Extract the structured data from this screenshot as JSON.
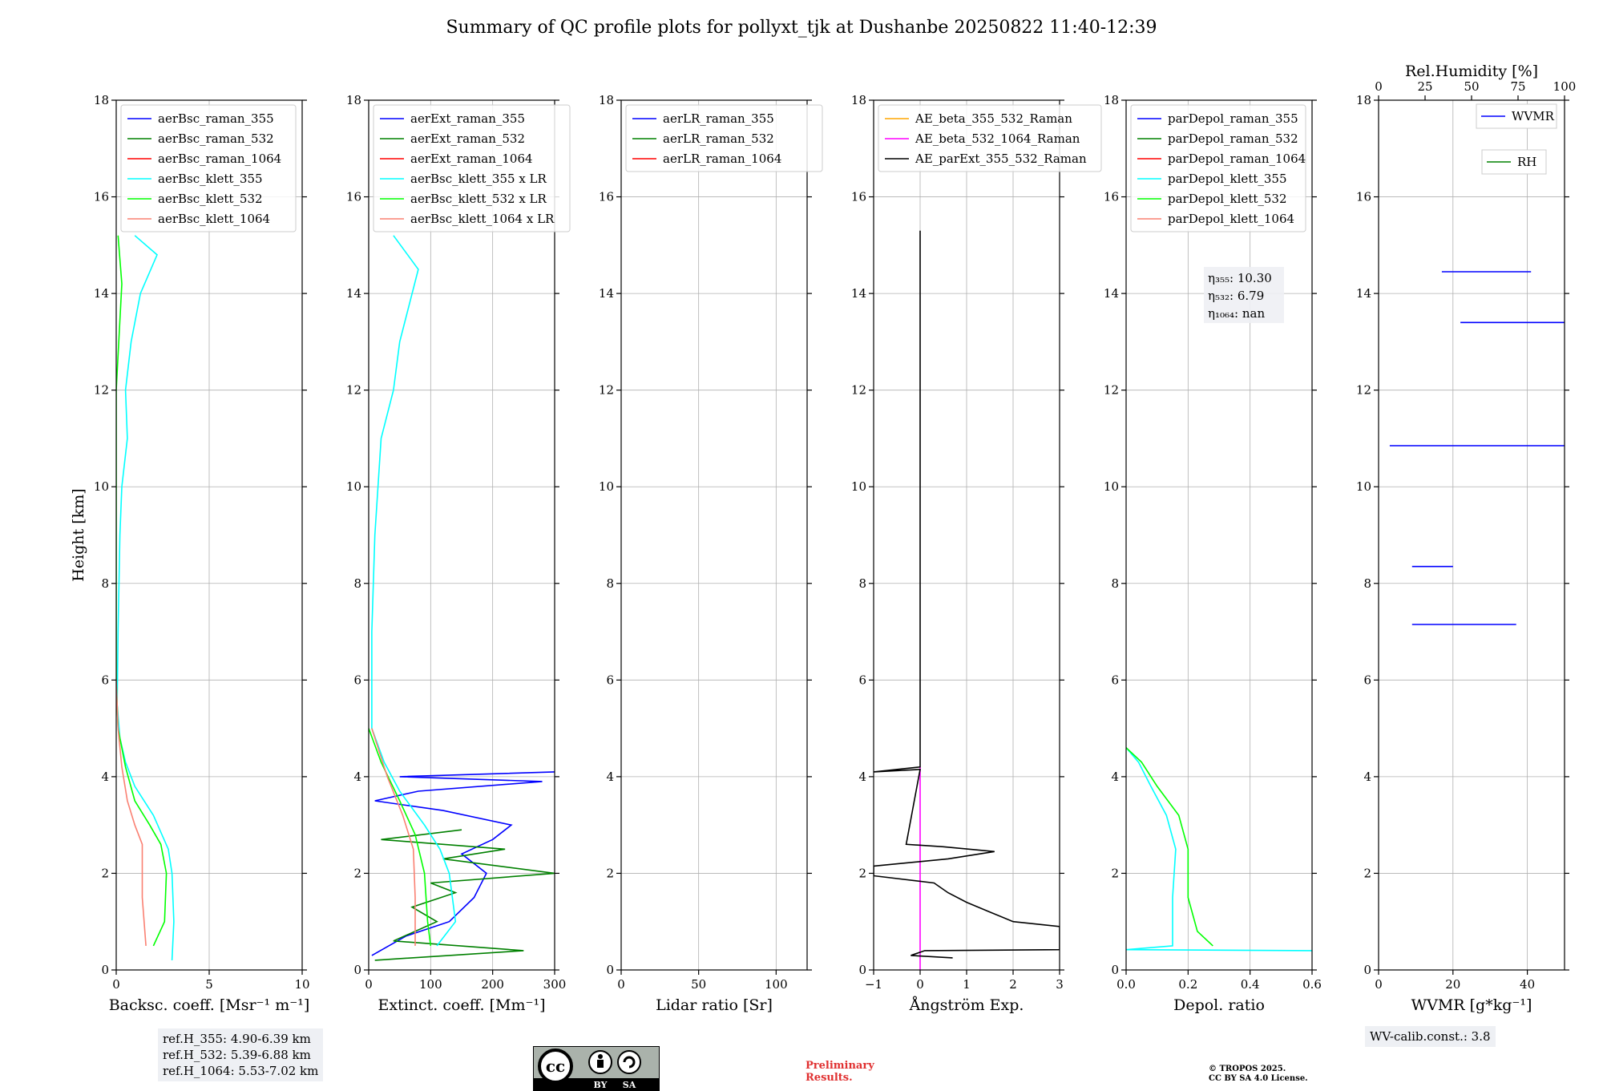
{
  "figure": {
    "title": "Summary of QC profile plots for pollyxt_tjk at Dushanbe 20250822 11:40-12:39",
    "ylabel": "Height [km]",
    "ref_heights": [
      "ref.H_355: 4.90-6.39 km",
      "ref.H_532: 5.39-6.88 km",
      "ref.H_1064: 5.53-7.02 km"
    ],
    "wv_calib": "WV-calib.const.: 3.8",
    "preliminary": [
      "Preliminary",
      "Results."
    ],
    "copyright": [
      "© TROPOS 2025.",
      "CC BY SA 4.0 License."
    ],
    "license_badge": [
      "BY",
      "SA"
    ],
    "colors": {
      "blue": "#0000ff",
      "green": "#008000",
      "red": "#ff0000",
      "cyan": "#00ffff",
      "lime": "#00ff00",
      "salmon": "#fa8072",
      "orange": "#ffa500",
      "magenta": "#ff00ff",
      "black": "#000000"
    }
  },
  "chart_data": [
    {
      "type": "line",
      "xlabel": "Backsc. coeff. [Msr⁻¹ m⁻¹]",
      "xlim": [
        0,
        10
      ],
      "ylim": [
        0,
        18
      ],
      "xticks": [
        "0",
        "5",
        "10"
      ],
      "yticks": [
        "0",
        "2",
        "4",
        "6",
        "8",
        "10",
        "12",
        "14",
        "16",
        "18"
      ],
      "legend": [
        "aerBsc_raman_355",
        "aerBsc_raman_532",
        "aerBsc_raman_1064",
        "aerBsc_klett_355",
        "aerBsc_klett_532",
        "aerBsc_klett_1064"
      ],
      "legend_colors": [
        "#0000ff",
        "#008000",
        "#ff0000",
        "#00ffff",
        "#00ff00",
        "#fa8072"
      ],
      "series": [
        {
          "name": "aerBsc_klett_355",
          "color": "#00ffff",
          "points": [
            [
              3.0,
              0.2
            ],
            [
              3.1,
              1.0
            ],
            [
              3.0,
              2.0
            ],
            [
              2.8,
              2.5
            ],
            [
              2.0,
              3.2
            ],
            [
              1.0,
              3.8
            ],
            [
              0.5,
              4.3
            ],
            [
              0.2,
              4.8
            ],
            [
              0.05,
              5.5
            ],
            [
              0.1,
              7.0
            ],
            [
              0.2,
              9.0
            ],
            [
              0.3,
              10.0
            ],
            [
              0.6,
              11.0
            ],
            [
              0.5,
              12.0
            ],
            [
              0.8,
              13.0
            ],
            [
              1.3,
              14.0
            ],
            [
              2.2,
              14.8
            ],
            [
              1.0,
              15.2
            ]
          ]
        },
        {
          "name": "aerBsc_klett_532",
          "color": "#00ff00",
          "points": [
            [
              2.0,
              0.5
            ],
            [
              2.6,
              1.0
            ],
            [
              2.7,
              2.0
            ],
            [
              2.4,
              2.6
            ],
            [
              1.8,
              3.0
            ],
            [
              1.0,
              3.5
            ],
            [
              0.5,
              4.2
            ],
            [
              0.1,
              5.0
            ],
            [
              0.0,
              6.0
            ],
            [
              0.0,
              12.0
            ],
            [
              0.3,
              14.2
            ],
            [
              0.1,
              15.2
            ]
          ]
        },
        {
          "name": "aerBsc_klett_1064",
          "color": "#fa8072",
          "points": [
            [
              1.6,
              0.5
            ],
            [
              1.4,
              1.5
            ],
            [
              1.4,
              2.6
            ],
            [
              1.0,
              3.0
            ],
            [
              0.6,
              3.5
            ],
            [
              0.3,
              4.2
            ],
            [
              0.1,
              5.0
            ],
            [
              0.0,
              6.0
            ]
          ]
        }
      ]
    },
    {
      "type": "line",
      "xlabel": "Extinct. coeff. [Mm⁻¹]",
      "xlim": [
        0,
        300
      ],
      "ylim": [
        0,
        18
      ],
      "xticks": [
        "0",
        "100",
        "200",
        "300"
      ],
      "yticks": [
        "0",
        "2",
        "4",
        "6",
        "8",
        "10",
        "12",
        "14",
        "16",
        "18"
      ],
      "legend": [
        "aerExt_raman_355",
        "aerExt_raman_532",
        "aerExt_raman_1064",
        "aerBsc_klett_355 x LR",
        "aerBsc_klett_532 x LR",
        "aerBsc_klett_1064 x LR"
      ],
      "legend_colors": [
        "#0000ff",
        "#008000",
        "#ff0000",
        "#00ffff",
        "#00ff00",
        "#fa8072"
      ],
      "series": [
        {
          "name": "aerExt_raman_355",
          "color": "#0000ff",
          "points": [
            [
              5,
              0.3
            ],
            [
              60,
              0.7
            ],
            [
              130,
              1.0
            ],
            [
              170,
              1.5
            ],
            [
              190,
              2.0
            ],
            [
              150,
              2.4
            ],
            [
              200,
              2.7
            ],
            [
              230,
              3.0
            ],
            [
              120,
              3.3
            ],
            [
              10,
              3.5
            ],
            [
              80,
              3.7
            ],
            [
              280,
              3.9
            ],
            [
              50,
              4.0
            ],
            [
              300,
              4.1
            ]
          ]
        },
        {
          "name": "aerExt_raman_532",
          "color": "#008000",
          "points": [
            [
              10,
              0.2
            ],
            [
              250,
              0.4
            ],
            [
              40,
              0.6
            ],
            [
              110,
              1.0
            ],
            [
              70,
              1.3
            ],
            [
              140,
              1.6
            ],
            [
              100,
              1.8
            ],
            [
              300,
              2.0
            ],
            [
              120,
              2.3
            ],
            [
              220,
              2.5
            ],
            [
              20,
              2.7
            ],
            [
              150,
              2.9
            ]
          ]
        },
        {
          "name": "aerBsc_klett_355 x LR",
          "color": "#00ffff",
          "points": [
            [
              110,
              0.5
            ],
            [
              140,
              1.0
            ],
            [
              130,
              2.0
            ],
            [
              115,
              2.5
            ],
            [
              90,
              3.0
            ],
            [
              50,
              3.7
            ],
            [
              25,
              4.3
            ],
            [
              5,
              5.0
            ],
            [
              5,
              7.0
            ],
            [
              10,
              9.0
            ],
            [
              20,
              11.0
            ],
            [
              40,
              12.0
            ],
            [
              50,
              13.0
            ],
            [
              80,
              14.5
            ],
            [
              40,
              15.2
            ]
          ]
        },
        {
          "name": "aerBsc_klett_532 x LR",
          "color": "#00ff00",
          "points": [
            [
              100,
              0.5
            ],
            [
              95,
              1.0
            ],
            [
              90,
              2.0
            ],
            [
              75,
              2.8
            ],
            [
              50,
              3.5
            ],
            [
              20,
              4.3
            ],
            [
              0,
              5.0
            ]
          ]
        },
        {
          "name": "aerBsc_klett_1064 x LR",
          "color": "#fa8072",
          "points": [
            [
              75,
              0.5
            ],
            [
              75,
              1.5
            ],
            [
              72,
              2.5
            ],
            [
              55,
              3.2
            ],
            [
              30,
              4.0
            ],
            [
              5,
              5.0
            ]
          ]
        }
      ]
    },
    {
      "type": "line",
      "xlabel": "Lidar ratio [Sr]",
      "xlim": [
        0,
        120
      ],
      "ylim": [
        0,
        18
      ],
      "xticks": [
        "0",
        "50",
        "100"
      ],
      "yticks": [
        "0",
        "2",
        "4",
        "6",
        "8",
        "10",
        "12",
        "14",
        "16",
        "18"
      ],
      "legend": [
        "aerLR_raman_355",
        "aerLR_raman_532",
        "aerLR_raman_1064"
      ],
      "legend_colors": [
        "#0000ff",
        "#008000",
        "#ff0000"
      ],
      "series": []
    },
    {
      "type": "line",
      "xlabel": "Ångström Exp.",
      "xlim": [
        -1,
        3
      ],
      "ylim": [
        0,
        18
      ],
      "xticks": [
        "−1",
        "0",
        "1",
        "2",
        "3"
      ],
      "yticks": [
        "0",
        "2",
        "4",
        "6",
        "8",
        "10",
        "12",
        "14",
        "16",
        "18"
      ],
      "legend": [
        "AE_beta_355_532_Raman",
        "AE_beta_532_1064_Raman",
        "AE_parExt_355_532_Raman"
      ],
      "legend_colors": [
        "#ffa500",
        "#ff00ff",
        "#000000"
      ],
      "series": [
        {
          "name": "AE_beta_532_1064_Raman",
          "color": "#ff00ff",
          "points": [
            [
              0,
              0.0
            ],
            [
              0,
              4.2
            ]
          ]
        },
        {
          "name": "AE_parExt_355_532_Raman",
          "color": "#000000",
          "points": [
            [
              0.7,
              0.25
            ],
            [
              -0.2,
              0.3
            ],
            [
              0.1,
              0.4
            ],
            [
              3.0,
              0.42
            ],
            [
              3.0,
              0.9
            ],
            [
              2.0,
              1.0
            ],
            [
              1.5,
              1.2
            ],
            [
              1.0,
              1.4
            ],
            [
              0.6,
              1.6
            ],
            [
              0.3,
              1.8
            ],
            [
              -1.0,
              1.95
            ],
            [
              -1.0,
              2.15
            ],
            [
              0.6,
              2.3
            ],
            [
              1.6,
              2.45
            ],
            [
              0.5,
              2.55
            ],
            [
              -0.3,
              2.6
            ],
            [
              0,
              4.15
            ],
            [
              -1.0,
              4.1
            ],
            [
              0,
              4.2
            ],
            [
              0,
              15.3
            ]
          ]
        }
      ]
    },
    {
      "type": "line",
      "xlabel": "Depol. ratio",
      "xlim": [
        0,
        0.6
      ],
      "ylim": [
        0,
        18
      ],
      "xticks": [
        "0.0",
        "0.2",
        "0.4",
        "0.6"
      ],
      "yticks": [
        "0",
        "2",
        "4",
        "6",
        "8",
        "10",
        "12",
        "14",
        "16",
        "18"
      ],
      "legend": [
        "parDepol_raman_355",
        "parDepol_raman_532",
        "parDepol_raman_1064",
        "parDepol_klett_355",
        "parDepol_klett_532",
        "parDepol_klett_1064"
      ],
      "legend_colors": [
        "#0000ff",
        "#008000",
        "#ff0000",
        "#00ffff",
        "#00ff00",
        "#fa8072"
      ],
      "eta_labels": [
        "η₃₅₅: 10.30",
        "η₅₃₂: 6.79",
        "η₁₀₆₄: nan"
      ],
      "series": [
        {
          "name": "parDepol_klett_355",
          "color": "#00ffff",
          "points": [
            [
              0.6,
              0.4
            ],
            [
              0.0,
              0.42
            ],
            [
              0.15,
              0.5
            ],
            [
              0.15,
              1.5
            ],
            [
              0.16,
              2.5
            ],
            [
              0.13,
              3.2
            ],
            [
              0.08,
              3.8
            ],
            [
              0.04,
              4.3
            ],
            [
              0.0,
              4.6
            ]
          ]
        },
        {
          "name": "parDepol_klett_532",
          "color": "#00ff00",
          "points": [
            [
              0.28,
              0.5
            ],
            [
              0.23,
              0.8
            ],
            [
              0.2,
              1.5
            ],
            [
              0.2,
              2.5
            ],
            [
              0.17,
              3.2
            ],
            [
              0.1,
              3.8
            ],
            [
              0.05,
              4.3
            ],
            [
              0.0,
              4.6
            ]
          ]
        }
      ]
    },
    {
      "type": "line",
      "xlabel": "WVMR [g*kg⁻¹]",
      "xlim": [
        0,
        50
      ],
      "ylim": [
        0,
        18
      ],
      "xticks": [
        "0",
        "20",
        "40"
      ],
      "yticks": [
        "0",
        "2",
        "4",
        "6",
        "8",
        "10",
        "12",
        "14",
        "16",
        "18"
      ],
      "top_axis_label": "Rel.Humidity [%]",
      "top_xticks": [
        "0",
        "25",
        "50",
        "75",
        "100"
      ],
      "legend": [
        "WVMR",
        "RH"
      ],
      "legend_colors": [
        "#0000ff",
        "#008000"
      ],
      "series": [
        {
          "name": "WVMR",
          "color": "#0000ff",
          "points": [
            [
              17,
              14.45
            ],
            [
              41,
              14.45
            ]
          ]
        },
        {
          "name": "WVMR",
          "color": "#0000ff",
          "points": [
            [
              22,
              13.4
            ],
            [
              50,
              13.4
            ]
          ]
        },
        {
          "name": "WVMR",
          "color": "#0000ff",
          "points": [
            [
              3,
              10.85
            ],
            [
              50,
              10.85
            ]
          ]
        },
        {
          "name": "WVMR",
          "color": "#0000ff",
          "points": [
            [
              9,
              8.35
            ],
            [
              20,
              8.35
            ]
          ]
        },
        {
          "name": "WVMR",
          "color": "#0000ff",
          "points": [
            [
              9,
              7.15
            ],
            [
              37,
              7.15
            ]
          ]
        }
      ]
    }
  ]
}
